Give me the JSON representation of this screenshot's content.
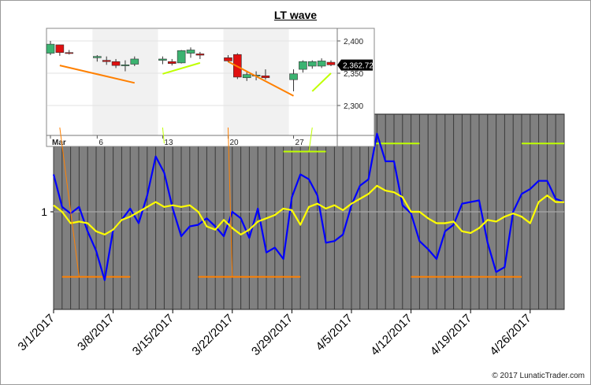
{
  "chart_data": [
    {
      "type": "line",
      "title": "LT wave",
      "x_tick_labels": [
        "3/1/2017",
        "3/8/2017",
        "3/15/2017",
        "3/22/2017",
        "3/29/2017",
        "4/5/2017",
        "4/12/2017",
        "4/19/2017",
        "4/26/2017"
      ],
      "y_tick_labels": [
        "1"
      ],
      "y_reference": 1,
      "ylim": [
        0.7,
        1.3
      ],
      "x_start": "3/1/2017",
      "x_end": "4/30/2017",
      "series": [
        {
          "color": "#0000ff",
          "x": [
            "3/1/2017",
            "3/2/2017",
            "3/3/2017",
            "3/4/2017",
            "3/5/2017",
            "3/6/2017",
            "3/7/2017",
            "3/8/2017",
            "3/9/2017",
            "3/10/2017",
            "3/11/2017",
            "3/12/2017",
            "3/13/2017",
            "3/14/2017",
            "3/15/2017",
            "3/16/2017",
            "3/17/2017",
            "3/18/2017",
            "3/19/2017",
            "3/20/2017",
            "3/21/2017",
            "3/22/2017",
            "3/23/2017",
            "3/24/2017",
            "3/25/2017",
            "3/26/2017",
            "3/27/2017",
            "3/28/2017",
            "3/29/2017",
            "3/30/2017",
            "3/31/2017",
            "4/1/2017",
            "4/2/2017",
            "4/3/2017",
            "4/4/2017",
            "4/5/2017",
            "4/6/2017",
            "4/7/2017",
            "4/8/2017",
            "4/9/2017",
            "4/10/2017",
            "4/11/2017",
            "4/12/2017",
            "4/13/2017",
            "4/14/2017",
            "4/15/2017",
            "4/16/2017",
            "4/17/2017",
            "4/18/2017",
            "4/19/2017",
            "4/20/2017",
            "4/21/2017",
            "4/22/2017",
            "4/23/2017",
            "4/24/2017",
            "4/25/2017",
            "4/26/2017",
            "4/27/2017",
            "4/28/2017",
            "4/29/2017",
            "4/30/2017"
          ],
          "y": [
            1.115,
            1.015,
            0.995,
            1.015,
            0.94,
            0.88,
            0.79,
            0.945,
            0.975,
            1.01,
            0.965,
            1.05,
            1.17,
            1.12,
            1.01,
            0.925,
            0.955,
            0.96,
            0.98,
            0.955,
            0.925,
            1.0,
            0.98,
            0.92,
            1.01,
            0.875,
            0.89,
            0.855,
            1.045,
            1.115,
            1.1,
            1.05,
            0.905,
            0.91,
            0.93,
            1.02,
            1.08,
            1.1,
            1.24,
            1.155,
            1.155,
            1.02,
            0.995,
            0.91,
            0.885,
            0.855,
            0.94,
            0.96,
            1.025,
            1.03,
            1.035,
            0.905,
            0.815,
            0.83,
            1.0,
            1.055,
            1.07,
            1.095,
            1.095,
            1.04,
            1.03
          ]
        },
        {
          "color": "#ffff00",
          "x": [
            "3/1/2017",
            "3/2/2017",
            "3/3/2017",
            "3/4/2017",
            "3/5/2017",
            "3/6/2017",
            "3/7/2017",
            "3/8/2017",
            "3/9/2017",
            "3/10/2017",
            "3/11/2017",
            "3/12/2017",
            "3/13/2017",
            "3/14/2017",
            "3/15/2017",
            "3/16/2017",
            "3/17/2017",
            "3/18/2017",
            "3/19/2017",
            "3/20/2017",
            "3/21/2017",
            "3/22/2017",
            "3/23/2017",
            "3/24/2017",
            "3/25/2017",
            "3/26/2017",
            "3/27/2017",
            "3/28/2017",
            "3/29/2017",
            "3/30/2017",
            "3/31/2017",
            "4/1/2017",
            "4/2/2017",
            "4/3/2017",
            "4/4/2017",
            "4/5/2017",
            "4/6/2017",
            "4/7/2017",
            "4/8/2017",
            "4/9/2017",
            "4/10/2017",
            "4/11/2017",
            "4/12/2017",
            "4/13/2017",
            "4/14/2017",
            "4/15/2017",
            "4/16/2017",
            "4/17/2017",
            "4/18/2017",
            "4/19/2017",
            "4/20/2017",
            "4/21/2017",
            "4/22/2017",
            "4/23/2017",
            "4/24/2017",
            "4/25/2017",
            "4/26/2017",
            "4/27/2017",
            "4/28/2017",
            "4/29/2017",
            "4/30/2017"
          ],
          "y": [
            1.02,
            1.0,
            0.965,
            0.97,
            0.965,
            0.94,
            0.93,
            0.945,
            0.975,
            0.985,
            1.0,
            1.015,
            1.03,
            1.015,
            1.02,
            1.015,
            1.02,
            1.0,
            0.955,
            0.945,
            0.975,
            0.95,
            0.93,
            0.945,
            0.97,
            0.98,
            0.99,
            1.01,
            1.005,
            0.96,
            1.015,
            1.025,
            1.01,
            1.02,
            1.005,
            1.025,
            1.04,
            1.055,
            1.08,
            1.065,
            1.06,
            1.045,
            1.0,
            1.0,
            0.98,
            0.965,
            0.965,
            0.97,
            0.94,
            0.935,
            0.95,
            0.975,
            0.97,
            0.985,
            0.995,
            0.985,
            0.965,
            1.03,
            1.05,
            1.03,
            1.03
          ]
        }
      ],
      "annotations": [
        {
          "type": "hline",
          "color": "#ff8000",
          "y": 0.8,
          "x_from": "3/2/2017",
          "x_to": "3/10/2017"
        },
        {
          "type": "hline",
          "color": "#ff8000",
          "y": 0.8,
          "x_from": "3/18/2017",
          "x_to": "3/30/2017"
        },
        {
          "type": "hline",
          "color": "#ff8000",
          "y": 0.8,
          "x_from": "4/12/2017",
          "x_to": "4/25/2017"
        },
        {
          "type": "hline",
          "color": "#bfff00",
          "y": 1.21,
          "x_from": "3/13/2017",
          "x_to": "3/19/2017"
        },
        {
          "type": "hline",
          "color": "#bfff00",
          "y": 1.185,
          "x_from": "3/28/2017",
          "x_to": "4/2/2017"
        },
        {
          "type": "hline",
          "color": "#bfff00",
          "y": 1.21,
          "x_from": "4/3/2017",
          "x_to": "4/13/2017"
        },
        {
          "type": "hline",
          "color": "#bfff00",
          "y": 1.21,
          "x_from": "4/25/2017",
          "x_to": "4/30/2017"
        }
      ]
    },
    {
      "type": "candlestick",
      "x_tick_labels": [
        "Mar",
        "6",
        "13",
        "20",
        "27"
      ],
      "y_tick_labels": [
        "2,400",
        "2,350",
        "2,300"
      ],
      "ylim": [
        2262,
        2415
      ],
      "last_price_label": "2,362.72",
      "dates": [
        "3/1",
        "3/2",
        "3/3",
        "3/6",
        "3/7",
        "3/8",
        "3/9",
        "3/10",
        "3/13",
        "3/14",
        "3/15",
        "3/16",
        "3/17",
        "3/20",
        "3/21",
        "3/22",
        "3/23",
        "3/24",
        "3/27",
        "3/28",
        "3/29",
        "3/30",
        "3/31"
      ],
      "open": [
        2381,
        2394,
        2382,
        2374,
        2370,
        2368,
        2362,
        2364,
        2370,
        2368,
        2366,
        2381,
        2380,
        2374,
        2379,
        2343,
        2346,
        2346,
        2340,
        2356,
        2361,
        2361,
        2367
      ],
      "close": [
        2395,
        2382,
        2381,
        2376,
        2368,
        2362,
        2363,
        2372,
        2372,
        2365,
        2385,
        2386,
        2378,
        2369,
        2344,
        2348,
        2347,
        2343,
        2349,
        2368,
        2368,
        2369,
        2363
      ],
      "high": [
        2400,
        2394,
        2386,
        2378,
        2376,
        2372,
        2370,
        2376,
        2376,
        2372,
        2386,
        2390,
        2383,
        2378,
        2381,
        2352,
        2353,
        2356,
        2356,
        2370,
        2370,
        2373,
        2370
      ],
      "low": [
        2378,
        2377,
        2379,
        2368,
        2363,
        2358,
        2353,
        2361,
        2364,
        2362,
        2365,
        2374,
        2372,
        2367,
        2341,
        2338,
        2339,
        2340,
        2322,
        2351,
        2357,
        2358,
        2361
      ],
      "trendlines": [
        {
          "color": "#ff8000",
          "from": [
            "3/2",
            2362
          ],
          "to": [
            "3/10",
            2335
          ]
        },
        {
          "color": "#bfff00",
          "from": [
            "3/13",
            2349
          ],
          "to": [
            "3/17",
            2366
          ]
        },
        {
          "color": "#ff8000",
          "from": [
            "3/20",
            2368
          ],
          "to": [
            "3/27",
            2315
          ]
        },
        {
          "color": "#bfff00",
          "from": [
            "3/29",
            2322
          ],
          "to": [
            "3/31",
            2350
          ]
        }
      ]
    }
  ],
  "page": {
    "title": "LT wave",
    "copyright": "© 2017 LunaticTrader.com"
  }
}
